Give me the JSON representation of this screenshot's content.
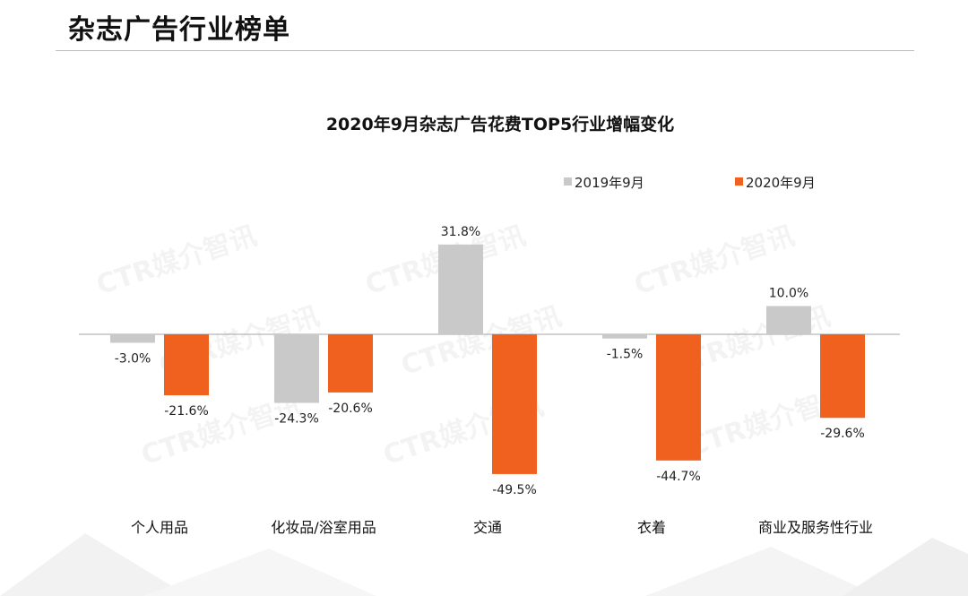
{
  "page": {
    "title": "杂志广告行业榜单"
  },
  "watermark": "CTR媒介智讯",
  "colors": {
    "series_2019": "#c9c9c9",
    "series_2020": "#f0601e",
    "axis": "#a6a6a6"
  },
  "chart_data": {
    "type": "bar",
    "title": "2020年9月杂志广告花费TOP5行业增幅变化",
    "categories": [
      "个人用品",
      "化妆品/浴室用品",
      "交通",
      "衣着",
      "商业及服务性行业"
    ],
    "series": [
      {
        "name": "2019年9月",
        "values": [
          -3.0,
          -24.3,
          31.8,
          -1.5,
          10.0
        ],
        "labels": [
          "-3.0%",
          "-24.3%",
          "31.8%",
          "-1.5%",
          "10.0%"
        ]
      },
      {
        "name": "2020年9月",
        "values": [
          -21.6,
          -20.6,
          -49.5,
          -44.7,
          -29.6
        ],
        "labels": [
          "-21.6%",
          "-20.6%",
          "-49.5%",
          "-44.7%",
          "-29.6%"
        ]
      }
    ],
    "unit": "%",
    "legend_position": "top-right",
    "grid": false
  }
}
